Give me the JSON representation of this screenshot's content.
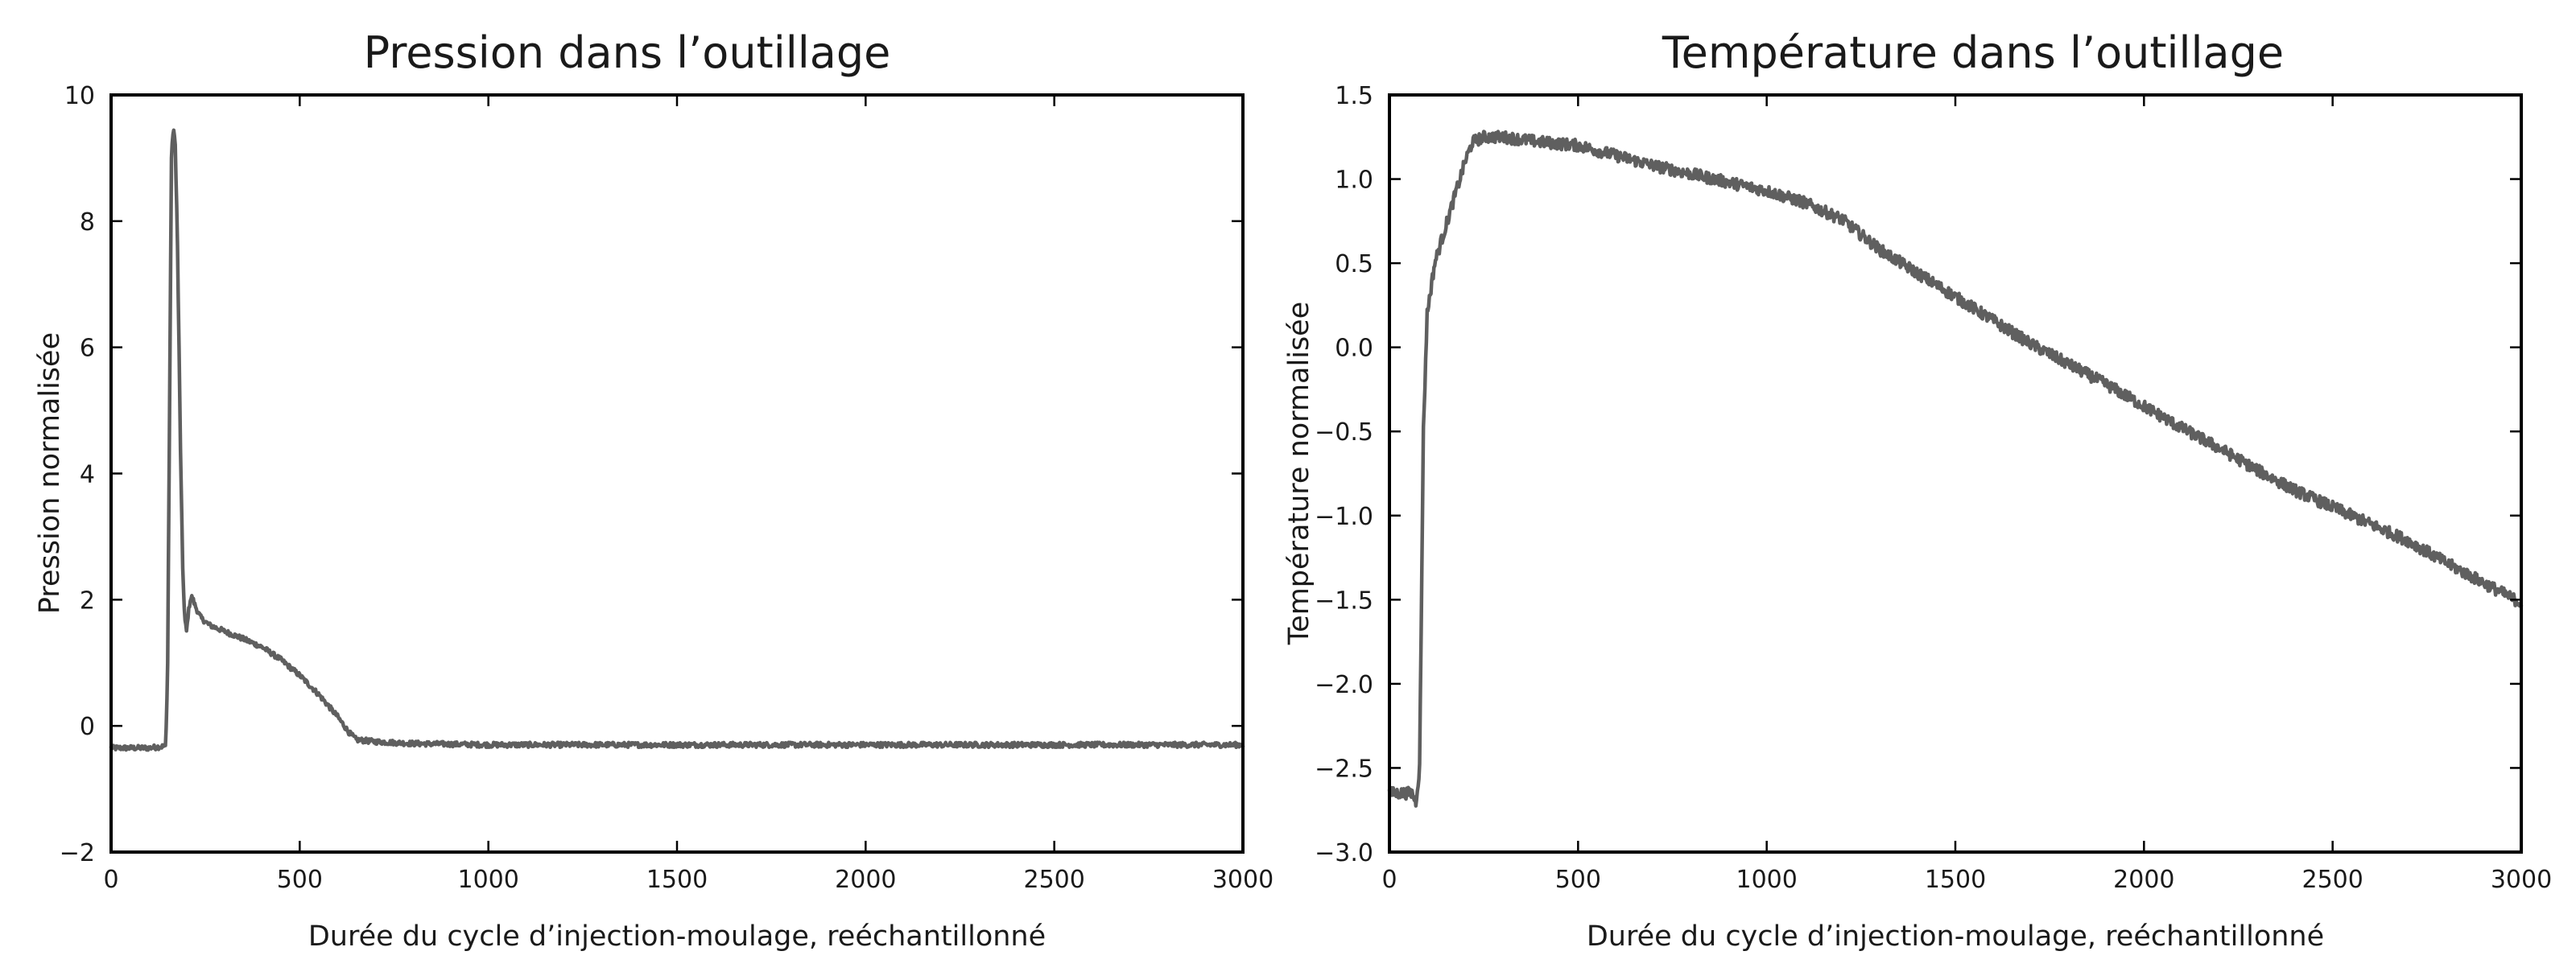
{
  "colors": {
    "series": "#5f5f5f",
    "axes": "#000000",
    "background": "#ffffff"
  },
  "chart_data": [
    {
      "type": "line",
      "title": "Pression dans l’outillage",
      "xlabel": "Durée du cycle d’injection-moulage, reéchantillonné",
      "ylabel": "Pression normalisée",
      "xlim": [
        0,
        3000
      ],
      "ylim": [
        -2,
        10
      ],
      "xticks": [
        0,
        500,
        1000,
        1500,
        2000,
        2500,
        3000
      ],
      "yticks": [
        -2,
        0,
        2,
        4,
        6,
        8,
        10
      ],
      "xtick_labels": [
        "0",
        "500",
        "1000",
        "1500",
        "2000",
        "2500",
        "3000"
      ],
      "ytick_labels": [
        "−2",
        "0",
        "2",
        "4",
        "6",
        "8",
        "10"
      ],
      "grid": false,
      "noise": 0.04,
      "series": [
        {
          "x": [
            0,
            50,
            100,
            145,
            150,
            155,
            160,
            165,
            170,
            175,
            180,
            185,
            190,
            195,
            200,
            205,
            210,
            215,
            220,
            230,
            240,
            260,
            300,
            350,
            400,
            450,
            500,
            550,
            600,
            630,
            650,
            700,
            800,
            1000,
            1500,
            2000,
            2500,
            3000
          ],
          "y": [
            -0.35,
            -0.35,
            -0.35,
            -0.32,
            1.0,
            5.0,
            9.0,
            9.5,
            9.2,
            8.0,
            6.0,
            4.0,
            2.5,
            1.7,
            1.5,
            1.8,
            2.0,
            2.05,
            1.95,
            1.8,
            1.7,
            1.6,
            1.5,
            1.38,
            1.25,
            1.05,
            0.8,
            0.5,
            0.15,
            -0.1,
            -0.22,
            -0.25,
            -0.28,
            -0.3,
            -0.3,
            -0.3,
            -0.3,
            -0.3
          ]
        }
      ]
    },
    {
      "type": "line",
      "title": "Température dans l’outillage",
      "xlabel": "Durée du cycle d’injection-moulage, reéchantillonné",
      "ylabel": "Température normalisée",
      "xlim": [
        0,
        3000
      ],
      "ylim": [
        -3.0,
        1.5
      ],
      "xticks": [
        0,
        500,
        1000,
        1500,
        2000,
        2500,
        3000
      ],
      "yticks": [
        -3.0,
        -2.5,
        -2.0,
        -1.5,
        -1.0,
        -0.5,
        0.0,
        0.5,
        1.0,
        1.5
      ],
      "xtick_labels": [
        "0",
        "500",
        "1000",
        "1500",
        "2000",
        "2500",
        "3000"
      ],
      "ytick_labels": [
        "−3.0",
        "−2.5",
        "−2.0",
        "−1.5",
        "−1.0",
        "−0.5",
        "0.0",
        "0.5",
        "1.0",
        "1.5"
      ],
      "grid": false,
      "noise": 0.035,
      "series": [
        {
          "x": [
            0,
            40,
            60,
            70,
            80,
            90,
            100,
            120,
            140,
            160,
            180,
            200,
            220,
            250,
            300,
            400,
            500,
            600,
            700,
            800,
            900,
            1000,
            1100,
            1200,
            1300,
            1400,
            1500,
            1600,
            1700,
            1800,
            1900,
            2000,
            2100,
            2200,
            2300,
            2400,
            2500,
            2600,
            2700,
            2800,
            2900,
            3000
          ],
          "y": [
            -2.65,
            -2.65,
            -2.65,
            -2.7,
            -2.5,
            -0.5,
            0.2,
            0.5,
            0.65,
            0.8,
            0.95,
            1.1,
            1.22,
            1.25,
            1.25,
            1.22,
            1.2,
            1.14,
            1.08,
            1.03,
            0.98,
            0.93,
            0.86,
            0.76,
            0.58,
            0.44,
            0.3,
            0.16,
            0.02,
            -0.1,
            -0.22,
            -0.35,
            -0.48,
            -0.6,
            -0.73,
            -0.85,
            -0.95,
            -1.05,
            -1.15,
            -1.28,
            -1.4,
            -1.52
          ]
        }
      ]
    }
  ]
}
